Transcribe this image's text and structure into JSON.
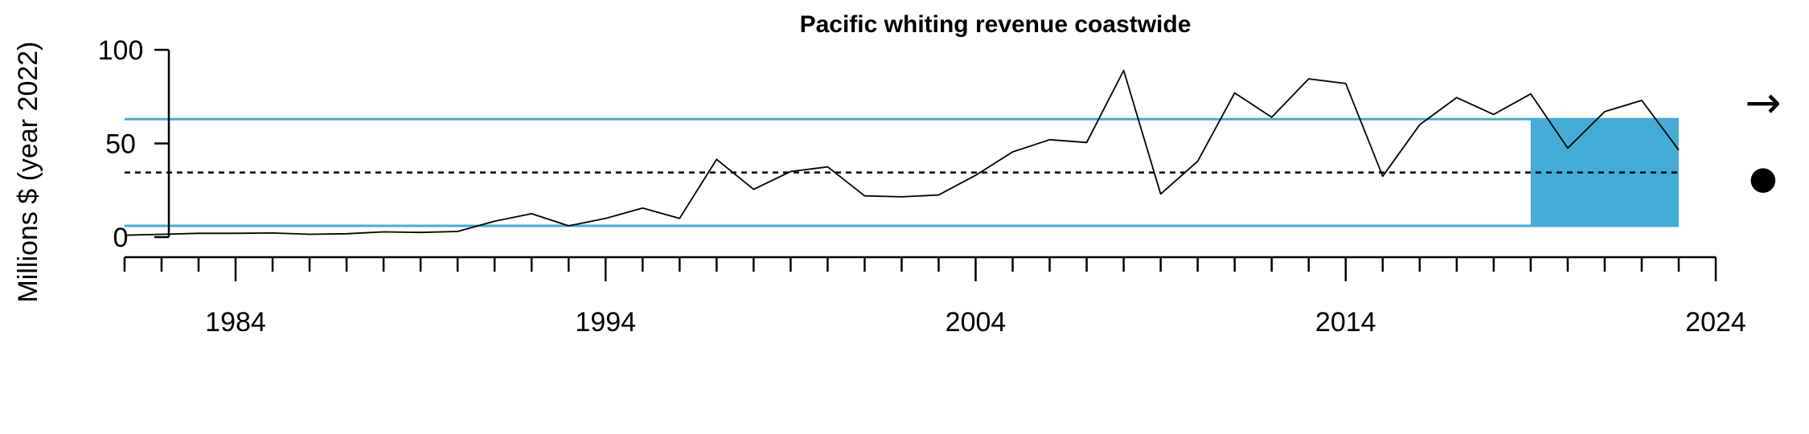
{
  "chart_data": {
    "type": "line",
    "title": "Pacific whiting revenue coastwide",
    "ylabel": "Millions $ (year 2022)",
    "xlabel": "",
    "xlim": [
      1980,
      2024
    ],
    "ylim": [
      0,
      100
    ],
    "x_ticks": [
      1984,
      1994,
      2004,
      2014,
      2024
    ],
    "y_ticks": [
      0,
      50,
      100
    ],
    "x": [
      1981,
      1982,
      1983,
      1984,
      1985,
      1986,
      1987,
      1988,
      1989,
      1990,
      1991,
      1992,
      1993,
      1994,
      1995,
      1996,
      1997,
      1998,
      1999,
      2000,
      2001,
      2002,
      2003,
      2004,
      2005,
      2006,
      2007,
      2008,
      2009,
      2010,
      2011,
      2012,
      2013,
      2014,
      2015,
      2016,
      2017,
      2018,
      2019,
      2020,
      2021,
      2022,
      2023
    ],
    "values": [
      1.0,
      1.5,
      2.0,
      2.0,
      2.2,
      1.5,
      1.8,
      2.8,
      2.5,
      3.0,
      8.5,
      12.5,
      6.0,
      10.0,
      15.5,
      10.0,
      41.5,
      25.5,
      35.0,
      37.5,
      22.0,
      21.5,
      22.5,
      33.0,
      45.5,
      52.0,
      50.5,
      89.0,
      23.0,
      40.5,
      77.0,
      64.0,
      84.5,
      82.0,
      32.5,
      60.0,
      74.5,
      65.5,
      76.5,
      47.5,
      67.0,
      73.0,
      46.5
    ],
    "mean": 34.5,
    "upper_sd": 63.0,
    "lower_sd": 6.0,
    "recent_window": [
      2019,
      2023
    ],
    "colors": {
      "band": "#43ACD7",
      "line": "#000000"
    },
    "trend_symbol": "→",
    "trend_meaning": "recent trend",
    "status_symbol": "●",
    "status_meaning": "recent mean within 1 s.d."
  }
}
